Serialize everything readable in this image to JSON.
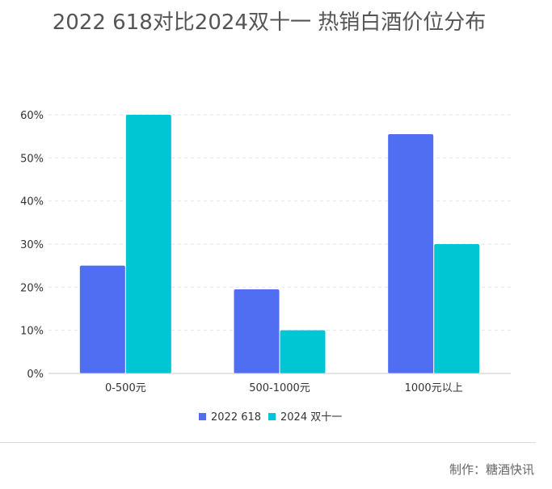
{
  "chart_data": {
    "type": "bar",
    "title": "2022 618对比2024双十一 热销白酒价位分布",
    "categories": [
      "0-500元",
      "500-1000元",
      "1000元以上"
    ],
    "series": [
      {
        "name": "2022 618",
        "values": [
          25,
          19.5,
          55.5
        ]
      },
      {
        "name": "2024 双十一",
        "values": [
          60,
          10,
          30
        ]
      }
    ],
    "ylim": [
      0,
      60
    ],
    "yticks": [
      0,
      10,
      20,
      30,
      40,
      50,
      60
    ],
    "ytick_suffix": "%",
    "grid": true,
    "legend_position": "bottom",
    "colors": [
      "#4f6ef2",
      "#00c6d4"
    ]
  },
  "footer": {
    "credit": "制作：糖酒快讯"
  }
}
